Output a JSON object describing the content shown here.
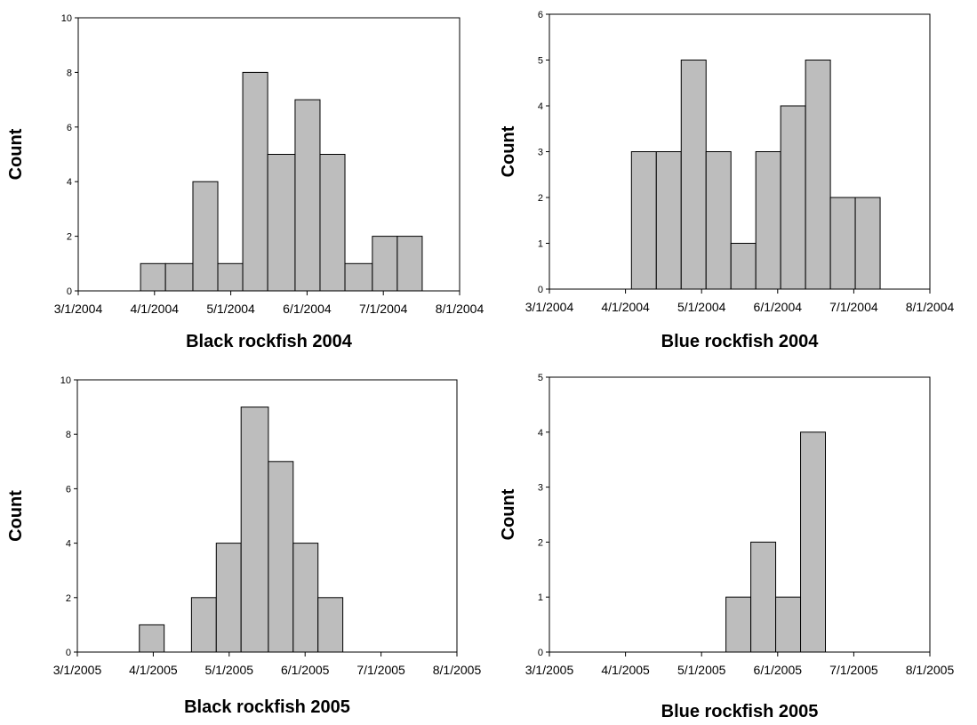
{
  "chart_data": [
    {
      "type": "bar",
      "title": "Black rockfish 2004",
      "ylabel": "Count",
      "ylim": [
        0,
        10
      ],
      "yticks": [
        "0",
        "2",
        "4",
        "6",
        "8",
        "10"
      ],
      "xlim": [
        "2004-03-01",
        "2004-08-01"
      ],
      "xticks": [
        "3/1/2004",
        "4/1/2004",
        "5/1/2004",
        "6/1/2004",
        "7/1/2004",
        "8/1/2004"
      ],
      "bins": [
        {
          "start": "2004-03-26",
          "end": "2004-04-05",
          "value": 1
        },
        {
          "start": "2004-04-05",
          "end": "2004-04-16",
          "value": 1
        },
        {
          "start": "2004-04-16",
          "end": "2004-04-26",
          "value": 4
        },
        {
          "start": "2004-04-26",
          "end": "2004-05-06",
          "value": 1
        },
        {
          "start": "2004-05-06",
          "end": "2004-05-16",
          "value": 8
        },
        {
          "start": "2004-05-16",
          "end": "2004-05-27",
          "value": 5
        },
        {
          "start": "2004-05-27",
          "end": "2004-06-06",
          "value": 7
        },
        {
          "start": "2004-06-06",
          "end": "2004-06-16",
          "value": 5
        },
        {
          "start": "2004-06-16",
          "end": "2004-06-27",
          "value": 1
        },
        {
          "start": "2004-06-27",
          "end": "2004-07-07",
          "value": 2
        },
        {
          "start": "2004-07-07",
          "end": "2004-07-17",
          "value": 2
        }
      ]
    },
    {
      "type": "bar",
      "title": "Blue rockfish 2004",
      "ylabel": "Count",
      "ylim": [
        0,
        6
      ],
      "yticks": [
        "0",
        "1",
        "2",
        "3",
        "4",
        "5",
        "6"
      ],
      "xlim": [
        "2004-03-01",
        "2004-08-01"
      ],
      "xticks": [
        "3/1/2004",
        "4/1/2004",
        "5/1/2004",
        "6/1/2004",
        "7/1/2004",
        "8/1/2004"
      ],
      "bins": [
        {
          "start": "2004-04-03",
          "end": "2004-04-13",
          "value": 3
        },
        {
          "start": "2004-04-13",
          "end": "2004-04-23",
          "value": 3
        },
        {
          "start": "2004-04-23",
          "end": "2004-05-03",
          "value": 5
        },
        {
          "start": "2004-05-03",
          "end": "2004-05-13",
          "value": 3
        },
        {
          "start": "2004-05-13",
          "end": "2004-05-23",
          "value": 1
        },
        {
          "start": "2004-05-23",
          "end": "2004-06-02",
          "value": 3
        },
        {
          "start": "2004-06-02",
          "end": "2004-06-12",
          "value": 4
        },
        {
          "start": "2004-06-12",
          "end": "2004-06-22",
          "value": 5
        },
        {
          "start": "2004-06-22",
          "end": "2004-07-02",
          "value": 2
        },
        {
          "start": "2004-07-02",
          "end": "2004-07-12",
          "value": 2
        }
      ]
    },
    {
      "type": "bar",
      "title": "Black rockfish 2005",
      "ylabel": "Count",
      "ylim": [
        0,
        10
      ],
      "yticks": [
        "0",
        "2",
        "4",
        "6",
        "8",
        "10"
      ],
      "xlim": [
        "2005-03-01",
        "2005-08-01"
      ],
      "xticks": [
        "3/1/2005",
        "4/1/2005",
        "5/1/2005",
        "6/1/2005",
        "7/1/2005",
        "8/1/2005"
      ],
      "bins": [
        {
          "start": "2005-03-26",
          "end": "2005-04-05",
          "value": 1
        },
        {
          "start": "2005-04-05",
          "end": "2005-04-16",
          "value": 0
        },
        {
          "start": "2005-04-16",
          "end": "2005-04-26",
          "value": 2
        },
        {
          "start": "2005-04-26",
          "end": "2005-05-06",
          "value": 4
        },
        {
          "start": "2005-05-06",
          "end": "2005-05-17",
          "value": 9
        },
        {
          "start": "2005-05-17",
          "end": "2005-05-27",
          "value": 7
        },
        {
          "start": "2005-05-27",
          "end": "2005-06-06",
          "value": 4
        },
        {
          "start": "2005-06-06",
          "end": "2005-06-16",
          "value": 2
        }
      ]
    },
    {
      "type": "bar",
      "title": "Blue rockfish 2005",
      "ylabel": "Count",
      "ylim": [
        0,
        5
      ],
      "yticks": [
        "0",
        "1",
        "2",
        "3",
        "4",
        "5"
      ],
      "xlim": [
        "2005-03-01",
        "2005-08-01"
      ],
      "xticks": [
        "3/1/2005",
        "4/1/2005",
        "5/1/2005",
        "6/1/2005",
        "7/1/2005",
        "8/1/2005"
      ],
      "bins": [
        {
          "start": "2005-05-11",
          "end": "2005-05-21",
          "value": 1
        },
        {
          "start": "2005-05-21",
          "end": "2005-05-31",
          "value": 2
        },
        {
          "start": "2005-05-31",
          "end": "2005-06-10",
          "value": 1
        },
        {
          "start": "2005-06-10",
          "end": "2005-06-20",
          "value": 4
        }
      ]
    }
  ],
  "colors": {
    "bar_fill": "#bdbdbd",
    "bar_stroke": "#000000"
  }
}
